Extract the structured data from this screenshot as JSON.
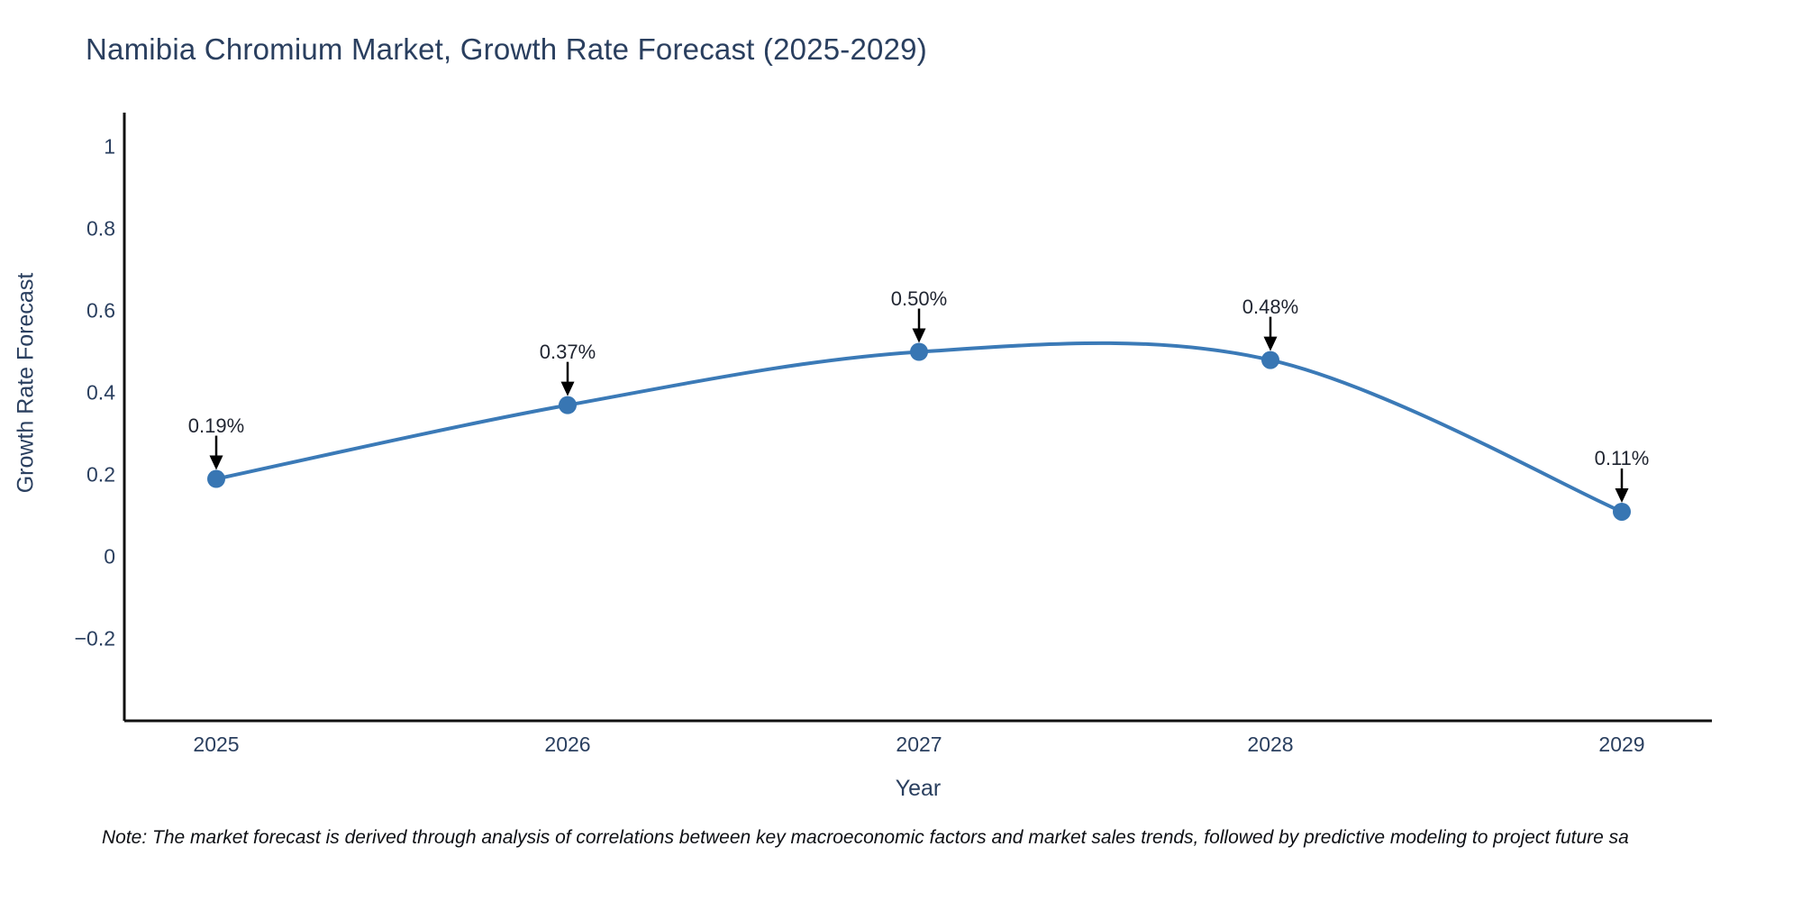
{
  "title": "Namibia Chromium Market, Growth Rate Forecast (2025-2029)",
  "note": "Note: The market forecast is derived through analysis of correlations between key macroeconomic factors and market sales trends, followed by predictive modeling to project future sa",
  "chart_data": {
    "type": "line",
    "title": "Namibia Chromium Market, Growth Rate Forecast (2025-2029)",
    "xlabel": "Year",
    "ylabel": "Growth Rate Forecast",
    "categories": [
      "2025",
      "2026",
      "2027",
      "2028",
      "2029"
    ],
    "series": [
      {
        "name": "Growth Rate Forecast",
        "values": [
          0.19,
          0.37,
          0.5,
          0.48,
          0.11
        ],
        "point_labels": [
          "0.19%",
          "0.37%",
          "0.50%",
          "0.48%",
          "0.11%"
        ]
      }
    ],
    "y_tick_labels": [
      "1",
      "0.8",
      "0.6",
      "0.4",
      "0.2",
      "0",
      "−0.2"
    ],
    "y_tick_values": [
      1,
      0.8,
      0.6,
      0.4,
      0.2,
      0,
      -0.2
    ],
    "ylim": [
      -0.4,
      1.08
    ],
    "grid": false,
    "legend_position": "none",
    "line_shape": "spline",
    "colors": {
      "line": "#3b7ab7",
      "marker": "#3876b3",
      "axis": "#111111",
      "annotation": "#1f2430",
      "text": "#2a3f5f"
    }
  }
}
